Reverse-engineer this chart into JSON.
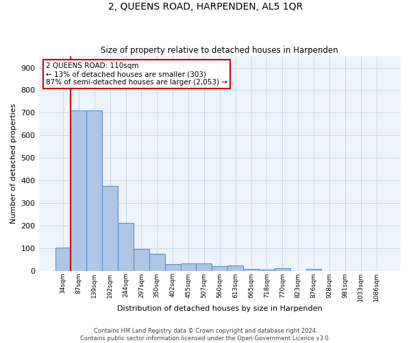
{
  "title": "2, QUEENS ROAD, HARPENDEN, AL5 1QR",
  "subtitle": "Size of property relative to detached houses in Harpenden",
  "xlabel": "Distribution of detached houses by size in Harpenden",
  "ylabel": "Number of detached properties",
  "categories": [
    "34sqm",
    "87sqm",
    "139sqm",
    "192sqm",
    "244sqm",
    "297sqm",
    "350sqm",
    "402sqm",
    "455sqm",
    "507sqm",
    "560sqm",
    "613sqm",
    "665sqm",
    "718sqm",
    "770sqm",
    "823sqm",
    "876sqm",
    "928sqm",
    "981sqm",
    "1033sqm",
    "1086sqm"
  ],
  "values": [
    103,
    710,
    710,
    375,
    210,
    95,
    75,
    30,
    33,
    33,
    20,
    23,
    8,
    5,
    10,
    0,
    8,
    0,
    0,
    0,
    0
  ],
  "bar_color": "#aec6e8",
  "bar_edge_color": "#5b8fc9",
  "grid_color": "#c8d8e8",
  "background_color": "#eef4fb",
  "red_line_x": 0.5,
  "red_line_color": "#cc0000",
  "annotation_text": "2 QUEENS ROAD: 110sqm\n← 13% of detached houses are smaller (303)\n87% of semi-detached houses are larger (2,053) →",
  "annotation_box_edge": "#cc0000",
  "footer_text": "Contains HM Land Registry data © Crown copyright and database right 2024.\nContains public sector information licensed under the Open Government Licence v3.0.",
  "ylim": [
    0,
    950
  ],
  "yticks": [
    0,
    100,
    200,
    300,
    400,
    500,
    600,
    700,
    800,
    900
  ]
}
